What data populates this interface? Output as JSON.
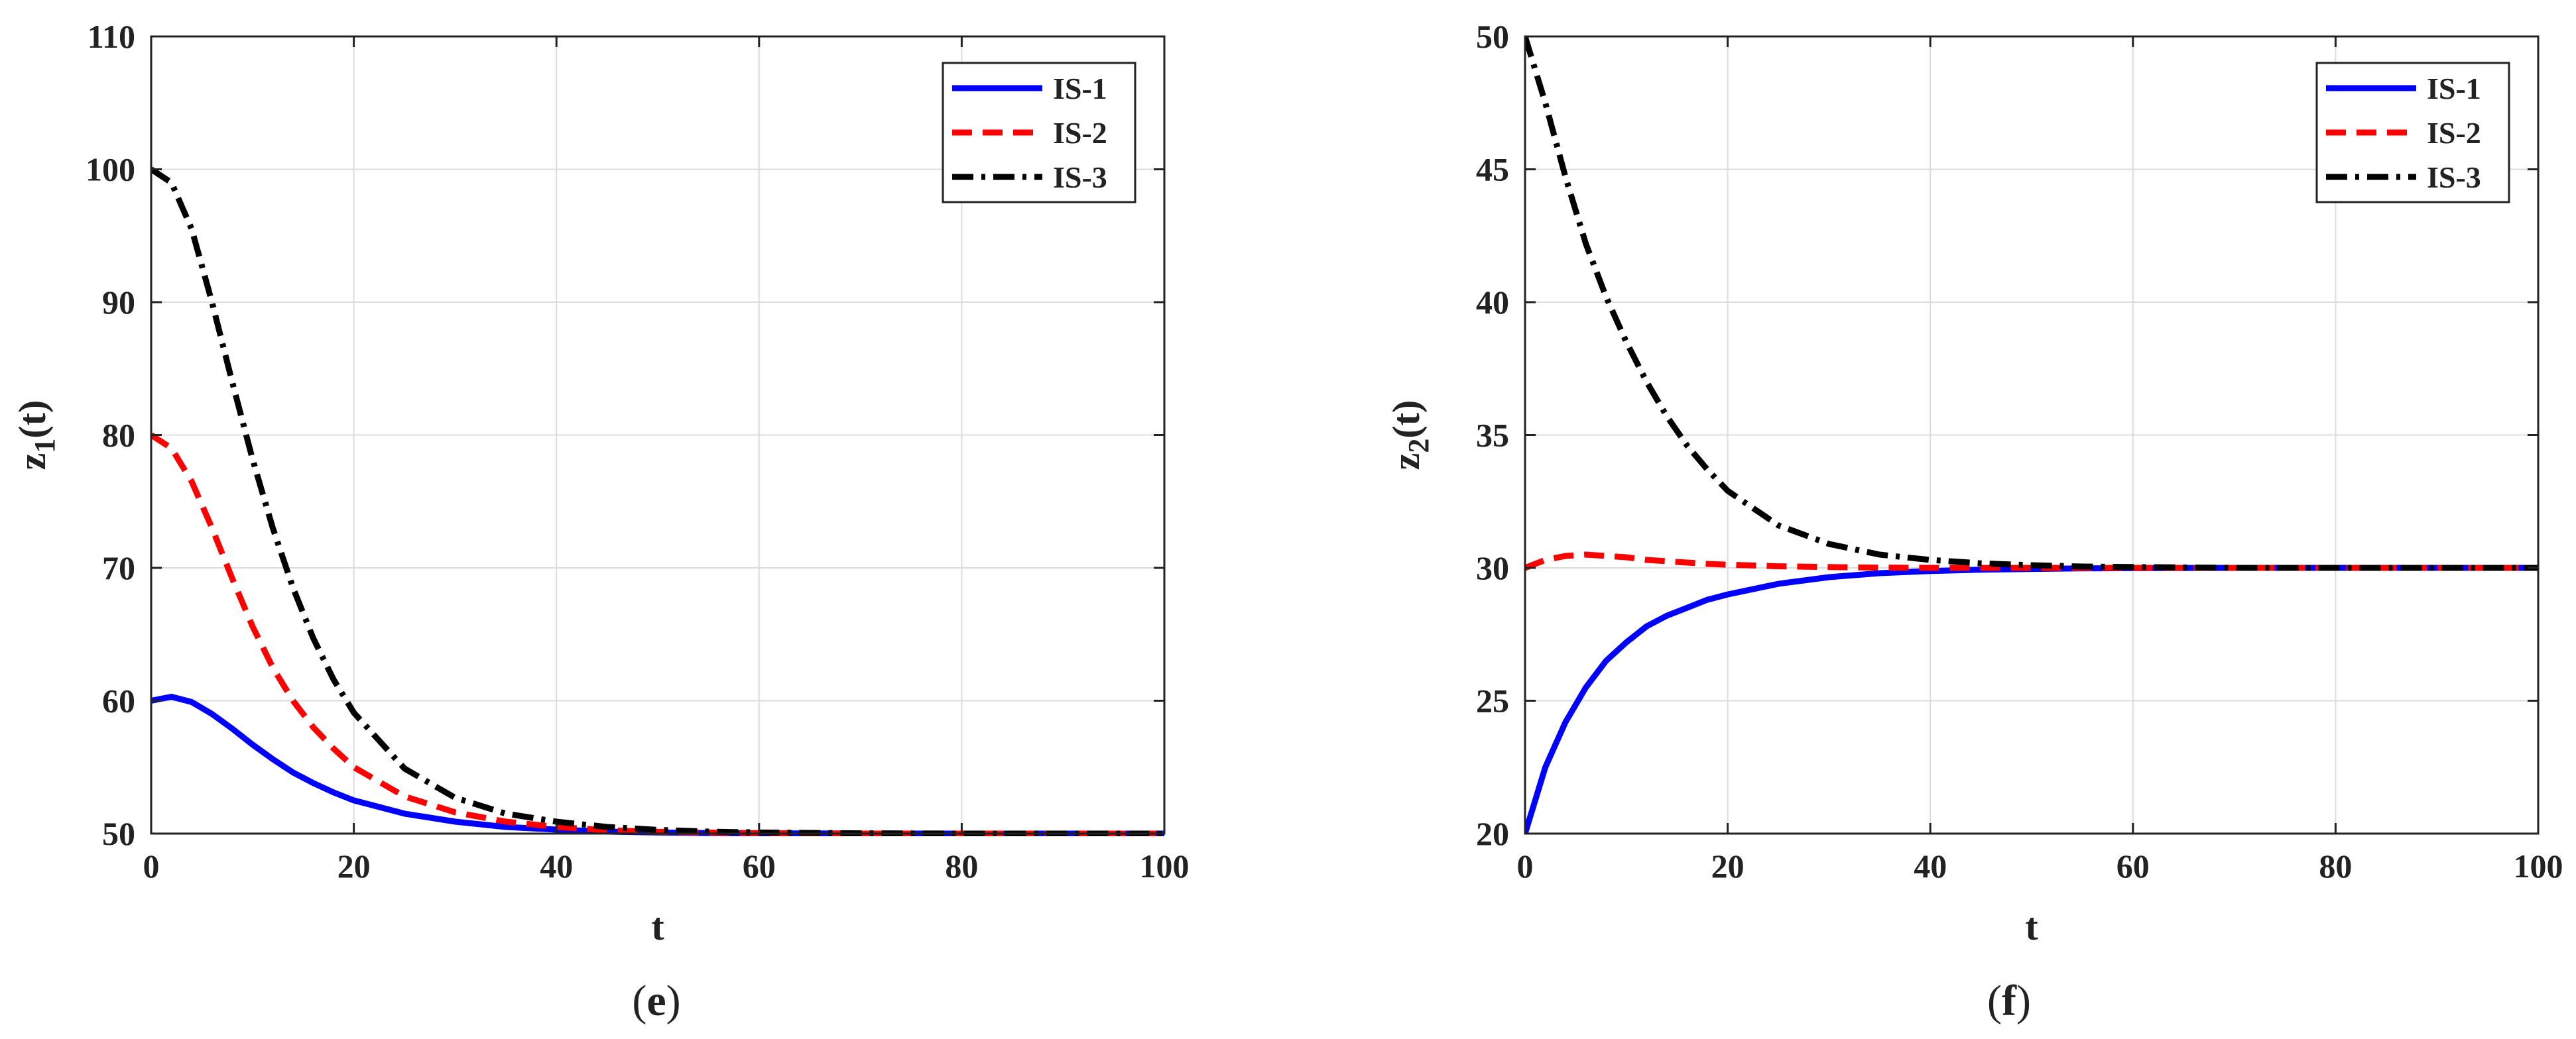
{
  "chart_data": [
    {
      "type": "line",
      "panel": "(e)",
      "panel_letter": "e",
      "xlabel": "t",
      "ylabel_main": "z",
      "ylabel_sub": "1",
      "ylabel_tail": "(t)",
      "xlim": [
        0,
        100
      ],
      "ylim": [
        50,
        110
      ],
      "xticks": [
        0,
        20,
        40,
        60,
        80,
        100
      ],
      "yticks": [
        50,
        60,
        70,
        80,
        90,
        100,
        110
      ],
      "grid": true,
      "legend_position": "top-right",
      "x": [
        0,
        2,
        4,
        6,
        8,
        10,
        12,
        14,
        16,
        18,
        20,
        25,
        30,
        35,
        40,
        45,
        50,
        55,
        60,
        70,
        80,
        90,
        100
      ],
      "series": [
        {
          "name": "IS-1",
          "color": "#0000ff",
          "dash": "solid",
          "values": [
            60.0,
            60.3,
            59.9,
            59.0,
            57.9,
            56.7,
            55.6,
            54.6,
            53.8,
            53.1,
            52.5,
            51.5,
            50.9,
            50.5,
            50.3,
            50.15,
            50.08,
            50.04,
            50.02,
            50.0,
            50.0,
            50.0,
            50.0
          ]
        },
        {
          "name": "IS-2",
          "color": "#ff0000",
          "dash": "dashed",
          "values": [
            80.0,
            79.0,
            76.5,
            73.0,
            69.2,
            65.6,
            62.5,
            60.0,
            58.0,
            56.4,
            55.0,
            52.8,
            51.6,
            50.9,
            50.5,
            50.25,
            50.13,
            50.07,
            50.03,
            50.0,
            50.0,
            50.0,
            50.0
          ]
        },
        {
          "name": "IS-3",
          "color": "#000000",
          "dash": "dashdot",
          "values": [
            100.0,
            99.0,
            95.5,
            90.0,
            84.0,
            78.2,
            73.0,
            68.5,
            64.7,
            61.6,
            59.1,
            54.9,
            52.7,
            51.5,
            50.9,
            50.5,
            50.28,
            50.15,
            50.08,
            50.02,
            50.0,
            50.0,
            50.0
          ]
        }
      ]
    },
    {
      "type": "line",
      "panel": "(f)",
      "panel_letter": "f",
      "xlabel": "t",
      "ylabel_main": "z",
      "ylabel_sub": "2",
      "ylabel_tail": "(t)",
      "xlim": [
        0,
        100
      ],
      "ylim": [
        20,
        50
      ],
      "xticks": [
        0,
        20,
        40,
        60,
        80,
        100
      ],
      "yticks": [
        20,
        25,
        30,
        35,
        40,
        45,
        50
      ],
      "grid": true,
      "legend_position": "top-right",
      "x": [
        0,
        2,
        4,
        6,
        8,
        10,
        12,
        14,
        16,
        18,
        20,
        25,
        30,
        35,
        40,
        45,
        50,
        55,
        60,
        70,
        80,
        90,
        100
      ],
      "series": [
        {
          "name": "IS-1",
          "color": "#0000ff",
          "dash": "solid",
          "values": [
            20.0,
            22.5,
            24.2,
            25.5,
            26.5,
            27.2,
            27.8,
            28.2,
            28.5,
            28.8,
            29.0,
            29.4,
            29.65,
            29.8,
            29.88,
            29.93,
            29.96,
            29.98,
            29.99,
            30.0,
            30.0,
            30.0,
            30.0
          ]
        },
        {
          "name": "IS-2",
          "color": "#ff0000",
          "dash": "dashed",
          "values": [
            30.0,
            30.3,
            30.45,
            30.5,
            30.45,
            30.4,
            30.3,
            30.25,
            30.2,
            30.15,
            30.12,
            30.06,
            30.03,
            30.01,
            30.0,
            30.0,
            30.0,
            30.0,
            30.0,
            30.0,
            30.0,
            30.0,
            30.0
          ]
        },
        {
          "name": "IS-3",
          "color": "#000000",
          "dash": "dashdot",
          "values": [
            50.0,
            47.5,
            44.7,
            42.2,
            40.2,
            38.5,
            37.0,
            35.7,
            34.6,
            33.7,
            32.9,
            31.6,
            30.9,
            30.5,
            30.3,
            30.17,
            30.1,
            30.05,
            30.03,
            30.0,
            30.0,
            30.0,
            30.0
          ]
        }
      ]
    }
  ]
}
